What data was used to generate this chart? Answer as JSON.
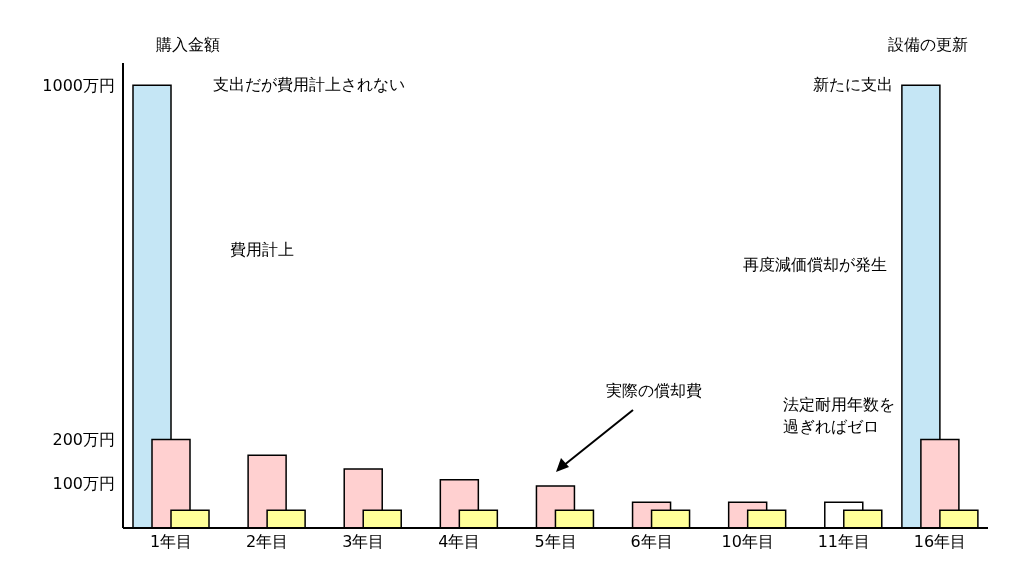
{
  "chart_data": {
    "type": "bar",
    "categories": [
      "1年目",
      "2年目",
      "3年目",
      "4年目",
      "5年目",
      "6年目",
      "10年目",
      "11年目",
      "16年目"
    ],
    "series": [
      {
        "color": "#c5e6f5",
        "values": [
          1000,
          null,
          null,
          null,
          null,
          null,
          null,
          null,
          1000
        ]
      },
      {
        "color": "#ffd0d0",
        "colors": [
          "#ffd0d0",
          "#ffd0d0",
          "#ffd0d0",
          "#ffd0d0",
          "#ffd0d0",
          "#ffd0d0",
          "#ffd0d0",
          "#ffffff",
          "#ffd0d0"
        ],
        "values": [
          200,
          164,
          133,
          109,
          95,
          58,
          58,
          58,
          200
        ]
      },
      {
        "color": "#ffff99",
        "values": [
          40,
          40,
          40,
          40,
          40,
          40,
          40,
          40,
          40
        ]
      }
    ],
    "ylim": [
      0,
      1050
    ],
    "yticks": [
      {
        "value": 100,
        "label": "100万円"
      },
      {
        "value": 200,
        "label": "200万円"
      },
      {
        "value": 1000,
        "label": "1000万円"
      }
    ],
    "grid": false,
    "legend": false,
    "annotations": [
      "購入金額",
      "支出だが費用計上されない",
      "費用計上",
      "実際の償却費",
      "法定耐用年数を過ぎればゼロ",
      "設備の更新",
      "新たに支出",
      "再度減価償却が発生"
    ]
  }
}
